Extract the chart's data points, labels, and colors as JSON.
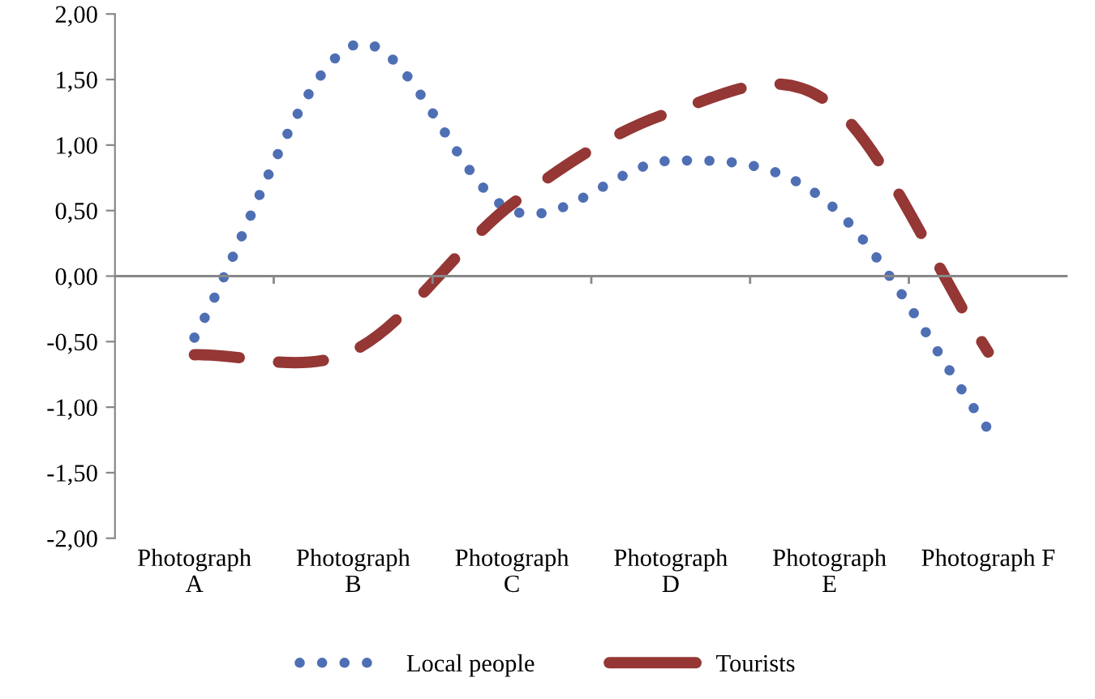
{
  "chart_data": {
    "type": "line",
    "categories": [
      "Photograph\nA",
      "Photograph\nB",
      "Photograph\nC",
      "Photograph\nD",
      "Photograph\nE",
      "Photograph F"
    ],
    "series": [
      {
        "name": "Local people",
        "color": "#4f6fb5",
        "line_style": "dotted",
        "values": [
          -0.47,
          1.76,
          0.5,
          0.88,
          0.55,
          -1.17
        ]
      },
      {
        "name": "Tourists",
        "color": "#943735",
        "line_style": "dashed",
        "values": [
          -0.6,
          -0.57,
          0.55,
          1.25,
          1.32,
          -0.58
        ]
      }
    ],
    "ylim": [
      -2,
      2
    ],
    "yticks": [
      {
        "value": -2,
        "label": "-2,00"
      },
      {
        "value": -1.5,
        "label": "-1,50"
      },
      {
        "value": -1,
        "label": "-1,00"
      },
      {
        "value": -0.5,
        "label": "-0,50"
      },
      {
        "value": 0,
        "label": "0,00"
      },
      {
        "value": 0.5,
        "label": "0,50"
      },
      {
        "value": 1,
        "label": "1,00"
      },
      {
        "value": 1.5,
        "label": "1,50"
      },
      {
        "value": 2,
        "label": "2,00"
      }
    ],
    "grid": false,
    "ref_lines": [
      {
        "axis": "y",
        "value": 0,
        "color": "#888888"
      }
    ],
    "legend": "bottom",
    "marker": "none"
  }
}
